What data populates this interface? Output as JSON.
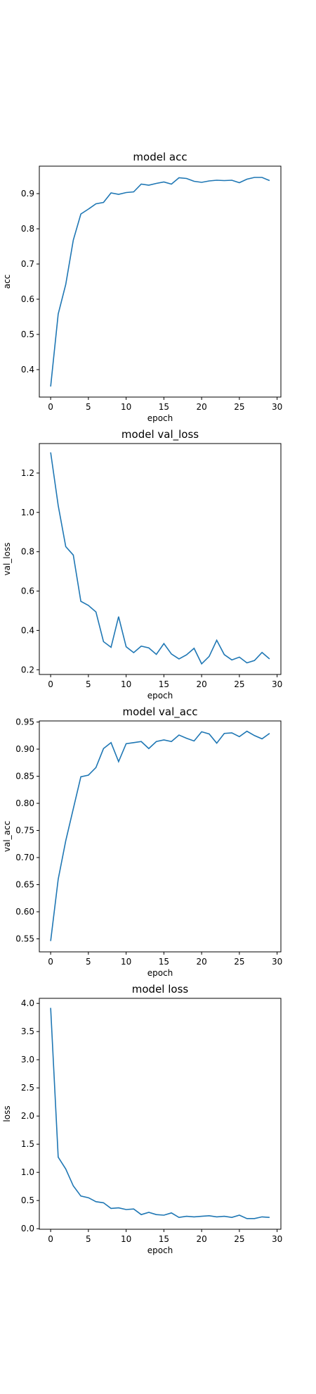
{
  "chart_data": [
    {
      "type": "line",
      "title": "model acc",
      "xlabel": "epoch",
      "ylabel": "acc",
      "xlim": [
        -1.5,
        30.5
      ],
      "ylim": [
        0.322,
        0.978
      ],
      "xticks": [
        0,
        5,
        10,
        15,
        20,
        25,
        30
      ],
      "yticks": [
        0.4,
        0.5,
        0.6,
        0.7,
        0.8,
        0.9
      ],
      "ytick_labels": [
        "0.4",
        "0.5",
        "0.6",
        "0.7",
        "0.8",
        "0.9"
      ],
      "grid": false,
      "series": [
        {
          "x": [
            0,
            1,
            2,
            3,
            4,
            5,
            6,
            7,
            8,
            9,
            10,
            11,
            12,
            13,
            14,
            15,
            16,
            17,
            18,
            19,
            20,
            21,
            22,
            23,
            24,
            25,
            26,
            27,
            28,
            29
          ],
          "y": [
            0.352,
            0.558,
            0.642,
            0.768,
            0.842,
            0.856,
            0.871,
            0.875,
            0.902,
            0.898,
            0.903,
            0.905,
            0.927,
            0.924,
            0.929,
            0.933,
            0.927,
            0.945,
            0.943,
            0.935,
            0.932,
            0.936,
            0.938,
            0.937,
            0.938,
            0.931,
            0.941,
            0.946,
            0.946,
            0.937
          ]
        }
      ]
    },
    {
      "type": "line",
      "title": "model val_loss",
      "xlabel": "epoch",
      "ylabel": "val_loss",
      "xlim": [
        -1.5,
        30.5
      ],
      "ylim": [
        0.176,
        1.35
      ],
      "xticks": [
        0,
        5,
        10,
        15,
        20,
        25,
        30
      ],
      "yticks": [
        0.2,
        0.4,
        0.6,
        0.8,
        1.0,
        1.2
      ],
      "ytick_labels": [
        "0.2",
        "0.4",
        "0.6",
        "0.8",
        "1.0",
        "1.2"
      ],
      "grid": false,
      "series": [
        {
          "x": [
            0,
            1,
            2,
            3,
            4,
            5,
            6,
            7,
            8,
            9,
            10,
            11,
            12,
            13,
            14,
            15,
            16,
            17,
            18,
            19,
            20,
            21,
            22,
            23,
            24,
            25,
            26,
            27,
            28,
            29
          ],
          "y": [
            1.305,
            1.035,
            0.826,
            0.783,
            0.548,
            0.527,
            0.494,
            0.343,
            0.314,
            0.47,
            0.317,
            0.287,
            0.32,
            0.311,
            0.278,
            0.333,
            0.28,
            0.255,
            0.276,
            0.309,
            0.23,
            0.268,
            0.35,
            0.277,
            0.25,
            0.264,
            0.235,
            0.247,
            0.288,
            0.255
          ]
        }
      ]
    },
    {
      "type": "line",
      "title": "model val_acc",
      "xlabel": "epoch",
      "ylabel": "val_acc",
      "xlim": [
        -1.5,
        30.5
      ],
      "ylim": [
        0.526,
        0.952
      ],
      "xticks": [
        0,
        5,
        10,
        15,
        20,
        25,
        30
      ],
      "yticks": [
        0.55,
        0.6,
        0.65,
        0.7,
        0.75,
        0.8,
        0.85,
        0.9,
        0.95
      ],
      "ytick_labels": [
        "0.55",
        "0.60",
        "0.65",
        "0.70",
        "0.75",
        "0.80",
        "0.85",
        "0.90",
        "0.95"
      ],
      "grid": false,
      "series": [
        {
          "x": [
            0,
            1,
            2,
            3,
            4,
            5,
            6,
            7,
            8,
            9,
            10,
            11,
            12,
            13,
            14,
            15,
            16,
            17,
            18,
            19,
            20,
            21,
            22,
            23,
            24,
            25,
            26,
            27,
            28,
            29
          ],
          "y": [
            0.546,
            0.66,
            0.731,
            0.79,
            0.849,
            0.852,
            0.866,
            0.901,
            0.912,
            0.877,
            0.91,
            0.912,
            0.914,
            0.901,
            0.914,
            0.917,
            0.914,
            0.926,
            0.92,
            0.915,
            0.932,
            0.928,
            0.911,
            0.929,
            0.93,
            0.923,
            0.933,
            0.925,
            0.919,
            0.929
          ]
        }
      ]
    },
    {
      "type": "line",
      "title": "model loss",
      "xlabel": "epoch",
      "ylabel": "loss",
      "xlim": [
        -1.5,
        30.5
      ],
      "ylim": [
        -0.01,
        4.09
      ],
      "xticks": [
        0,
        5,
        10,
        15,
        20,
        25,
        30
      ],
      "yticks": [
        0.0,
        0.5,
        1.0,
        1.5,
        2.0,
        2.5,
        3.0,
        3.5,
        4.0
      ],
      "ytick_labels": [
        "0.0",
        "0.5",
        "1.0",
        "1.5",
        "2.0",
        "2.5",
        "3.0",
        "3.5",
        "4.0"
      ],
      "grid": false,
      "series": [
        {
          "x": [
            0,
            1,
            2,
            3,
            4,
            5,
            6,
            7,
            8,
            9,
            10,
            11,
            12,
            13,
            14,
            15,
            16,
            17,
            18,
            19,
            20,
            21,
            22,
            23,
            24,
            25,
            26,
            27,
            28,
            29
          ],
          "y": [
            3.92,
            1.27,
            1.06,
            0.76,
            0.58,
            0.55,
            0.48,
            0.46,
            0.36,
            0.37,
            0.34,
            0.35,
            0.25,
            0.29,
            0.25,
            0.24,
            0.28,
            0.2,
            0.22,
            0.21,
            0.22,
            0.23,
            0.21,
            0.22,
            0.2,
            0.24,
            0.18,
            0.18,
            0.21,
            0.2
          ]
        }
      ]
    }
  ]
}
